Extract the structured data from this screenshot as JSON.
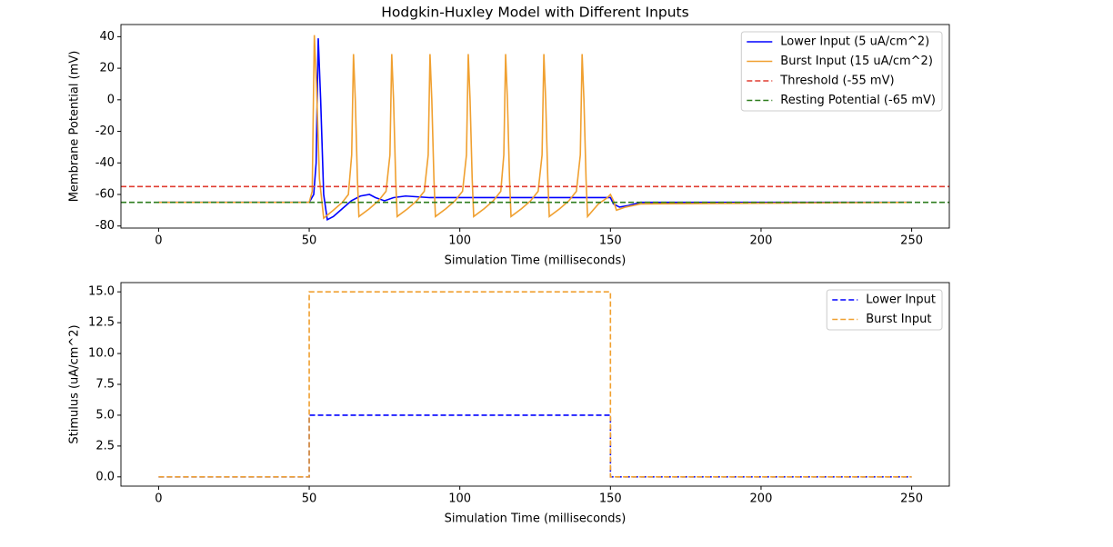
{
  "chart_data": [
    {
      "type": "line",
      "title": "Hodgkin-Huxley Model with Different Inputs",
      "x_label": "Simulation Time (milliseconds)",
      "y_label": "Membrane Potential (mV)",
      "xlim": [
        -12.5,
        262.5
      ],
      "xticks": [
        0,
        50,
        100,
        150,
        200,
        250
      ],
      "ylim": [
        -81.3,
        47.7
      ],
      "yticks": [
        -80,
        -60,
        -40,
        -20,
        0,
        20,
        40
      ],
      "legend": "upper right",
      "series": [
        {
          "name": "Lower Input (5 uA/cm^2)",
          "color": "#0000ff",
          "linestyle": "solid",
          "x": [
            0,
            50,
            51.5,
            52.3,
            53,
            53.8,
            54.8,
            56,
            58,
            61,
            64,
            67,
            70,
            72,
            75,
            78,
            82,
            86,
            90,
            100,
            150,
            151,
            153,
            156,
            160,
            250
          ],
          "values": [
            -65,
            -65,
            -60,
            -40,
            39,
            0,
            -60,
            -76,
            -74,
            -69,
            -64,
            -61,
            -60,
            -62,
            -64,
            -62,
            -61,
            -61.5,
            -62,
            -62,
            -62,
            -66,
            -68,
            -67,
            -65,
            -65
          ]
        },
        {
          "name": "Burst Input (15 uA/cm^2)",
          "color": "#f0a030",
          "linestyle": "solid",
          "x": [
            0,
            50,
            51,
            51.4,
            51.7,
            52.4,
            53.4,
            54.8,
            58,
            61,
            63,
            64.1,
            64.7,
            65.3,
            66,
            66.5,
            70,
            73,
            75.5,
            76.8,
            77.4,
            78,
            78.7,
            79.2,
            82.7,
            85.7,
            88.2,
            89.5,
            90.1,
            90.7,
            91.4,
            91.9,
            95.4,
            98.4,
            100.9,
            102.2,
            102.8,
            103.4,
            104.1,
            104.6,
            108.1,
            111.1,
            113.6,
            114.6,
            115.2,
            115.8,
            116.5,
            117,
            120.5,
            123.5,
            126,
            127.3,
            127.9,
            128.5,
            129.2,
            129.7,
            133.2,
            136.2,
            138.7,
            140,
            140.6,
            141.2,
            141.9,
            142.4,
            146,
            149,
            150,
            151,
            152,
            155,
            160,
            250
          ],
          "values": [
            -65,
            -65,
            -58,
            0,
            41,
            10,
            -50,
            -75,
            -70,
            -65,
            -60,
            -35,
            29,
            0,
            -50,
            -74,
            -69,
            -64,
            -58,
            -35,
            29,
            0,
            -50,
            -74,
            -69,
            -64,
            -58,
            -35,
            29,
            0,
            -50,
            -74,
            -69,
            -64,
            -58,
            -35,
            29,
            0,
            -50,
            -74,
            -69,
            -64,
            -58,
            -35,
            29,
            0,
            -50,
            -74,
            -69,
            -64,
            -58,
            -35,
            29,
            0,
            -50,
            -74,
            -69,
            -64,
            -58,
            -35,
            29,
            0,
            -50,
            -74,
            -66,
            -62,
            -60,
            -64,
            -70,
            -68,
            -66,
            -65
          ]
        }
      ],
      "reference_lines": [
        {
          "name": "Threshold (-55 mV)",
          "value": -55,
          "color": "#e03c31",
          "linestyle": "dashed"
        },
        {
          "name": "Resting Potential (-65 mV)",
          "value": -65,
          "color": "#2e7d1e",
          "linestyle": "dashed"
        }
      ]
    },
    {
      "type": "line",
      "x_label": "Simulation Time (milliseconds)",
      "y_label": "Stimulus (uA/cm^2)",
      "xlim": [
        -12.5,
        262.5
      ],
      "xticks": [
        0,
        50,
        100,
        150,
        200,
        250
      ],
      "ylim": [
        -0.75,
        15.75
      ],
      "yticks": [
        {
          "value": 0,
          "label": "0.0"
        },
        {
          "value": 2.5,
          "label": "2.5"
        },
        {
          "value": 5,
          "label": "5.0"
        },
        {
          "value": 7.5,
          "label": "7.5"
        },
        {
          "value": 10,
          "label": "10.0"
        },
        {
          "value": 12.5,
          "label": "12.5"
        },
        {
          "value": 15,
          "label": "15.0"
        }
      ],
      "legend": "upper right",
      "series": [
        {
          "name": "Lower Input",
          "color": "#0000ff",
          "linestyle": "dashed",
          "x": [
            0,
            50,
            50,
            150,
            150,
            250
          ],
          "values": [
            0,
            0,
            5,
            5,
            0,
            0
          ]
        },
        {
          "name": "Burst Input",
          "color": "#f0a030",
          "linestyle": "dashed",
          "x": [
            0,
            50,
            50,
            150,
            150,
            250
          ],
          "values": [
            0,
            0,
            15,
            15,
            0,
            0
          ]
        }
      ]
    }
  ]
}
